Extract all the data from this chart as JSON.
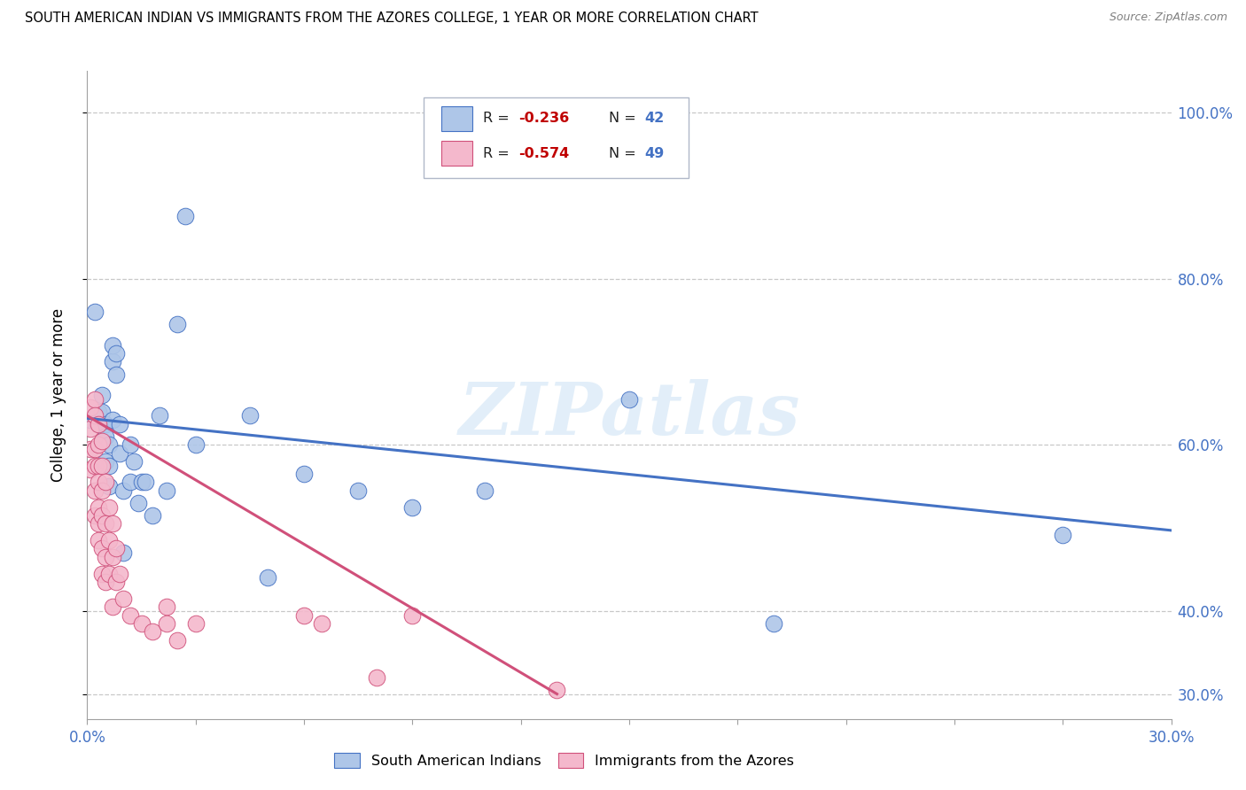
{
  "title": "SOUTH AMERICAN INDIAN VS IMMIGRANTS FROM THE AZORES COLLEGE, 1 YEAR OR MORE CORRELATION CHART",
  "source": "Source: ZipAtlas.com",
  "ylabel": "College, 1 year or more",
  "xmin": 0.0,
  "xmax": 0.3,
  "ymin": 0.27,
  "ymax": 1.05,
  "ytick_positions": [
    0.3,
    0.4,
    0.6,
    0.8,
    1.0
  ],
  "ytick_labels": [
    "30.0%",
    "40.0%",
    "60.0%",
    "80.0%",
    "100.0%"
  ],
  "legend_blue_r": "R = -0.236",
  "legend_blue_n": "N = 42",
  "legend_pink_r": "R = -0.574",
  "legend_pink_n": "N = 49",
  "blue_color": "#aec6e8",
  "pink_color": "#f4b8cc",
  "blue_edge_color": "#4472c4",
  "pink_edge_color": "#d0507a",
  "blue_line_color": "#4472c4",
  "pink_line_color": "#d0507a",
  "watermark": "ZIPatlas",
  "blue_scatter": [
    [
      0.001,
      0.63
    ],
    [
      0.002,
      0.76
    ],
    [
      0.003,
      0.64
    ],
    [
      0.003,
      0.625
    ],
    [
      0.004,
      0.66
    ],
    [
      0.004,
      0.64
    ],
    [
      0.005,
      0.625
    ],
    [
      0.005,
      0.61
    ],
    [
      0.005,
      0.58
    ],
    [
      0.006,
      0.6
    ],
    [
      0.006,
      0.575
    ],
    [
      0.006,
      0.55
    ],
    [
      0.007,
      0.63
    ],
    [
      0.007,
      0.7
    ],
    [
      0.007,
      0.72
    ],
    [
      0.008,
      0.71
    ],
    [
      0.008,
      0.685
    ],
    [
      0.009,
      0.625
    ],
    [
      0.009,
      0.59
    ],
    [
      0.01,
      0.545
    ],
    [
      0.01,
      0.47
    ],
    [
      0.012,
      0.6
    ],
    [
      0.012,
      0.555
    ],
    [
      0.013,
      0.58
    ],
    [
      0.014,
      0.53
    ],
    [
      0.015,
      0.555
    ],
    [
      0.016,
      0.555
    ],
    [
      0.018,
      0.515
    ],
    [
      0.02,
      0.635
    ],
    [
      0.022,
      0.545
    ],
    [
      0.025,
      0.745
    ],
    [
      0.027,
      0.875
    ],
    [
      0.03,
      0.6
    ],
    [
      0.045,
      0.635
    ],
    [
      0.05,
      0.44
    ],
    [
      0.06,
      0.565
    ],
    [
      0.075,
      0.545
    ],
    [
      0.09,
      0.525
    ],
    [
      0.11,
      0.545
    ],
    [
      0.15,
      0.655
    ],
    [
      0.19,
      0.385
    ],
    [
      0.27,
      0.492
    ]
  ],
  "pink_scatter": [
    [
      0.001,
      0.645
    ],
    [
      0.001,
      0.62
    ],
    [
      0.001,
      0.595
    ],
    [
      0.001,
      0.57
    ],
    [
      0.002,
      0.655
    ],
    [
      0.002,
      0.635
    ],
    [
      0.002,
      0.595
    ],
    [
      0.002,
      0.575
    ],
    [
      0.002,
      0.545
    ],
    [
      0.002,
      0.515
    ],
    [
      0.003,
      0.625
    ],
    [
      0.003,
      0.6
    ],
    [
      0.003,
      0.575
    ],
    [
      0.003,
      0.555
    ],
    [
      0.003,
      0.525
    ],
    [
      0.003,
      0.505
    ],
    [
      0.003,
      0.485
    ],
    [
      0.004,
      0.605
    ],
    [
      0.004,
      0.575
    ],
    [
      0.004,
      0.545
    ],
    [
      0.004,
      0.515
    ],
    [
      0.004,
      0.475
    ],
    [
      0.004,
      0.445
    ],
    [
      0.005,
      0.555
    ],
    [
      0.005,
      0.505
    ],
    [
      0.005,
      0.465
    ],
    [
      0.005,
      0.435
    ],
    [
      0.006,
      0.525
    ],
    [
      0.006,
      0.485
    ],
    [
      0.006,
      0.445
    ],
    [
      0.007,
      0.505
    ],
    [
      0.007,
      0.465
    ],
    [
      0.007,
      0.405
    ],
    [
      0.008,
      0.475
    ],
    [
      0.008,
      0.435
    ],
    [
      0.009,
      0.445
    ],
    [
      0.01,
      0.415
    ],
    [
      0.012,
      0.395
    ],
    [
      0.015,
      0.385
    ],
    [
      0.018,
      0.375
    ],
    [
      0.022,
      0.405
    ],
    [
      0.022,
      0.385
    ],
    [
      0.025,
      0.365
    ],
    [
      0.03,
      0.385
    ],
    [
      0.06,
      0.395
    ],
    [
      0.065,
      0.385
    ],
    [
      0.08,
      0.32
    ],
    [
      0.09,
      0.395
    ],
    [
      0.13,
      0.305
    ]
  ],
  "blue_trendline": [
    [
      0.0,
      0.632
    ],
    [
      0.3,
      0.497
    ]
  ],
  "pink_trendline": [
    [
      0.0,
      0.635
    ],
    [
      0.13,
      0.3
    ]
  ]
}
